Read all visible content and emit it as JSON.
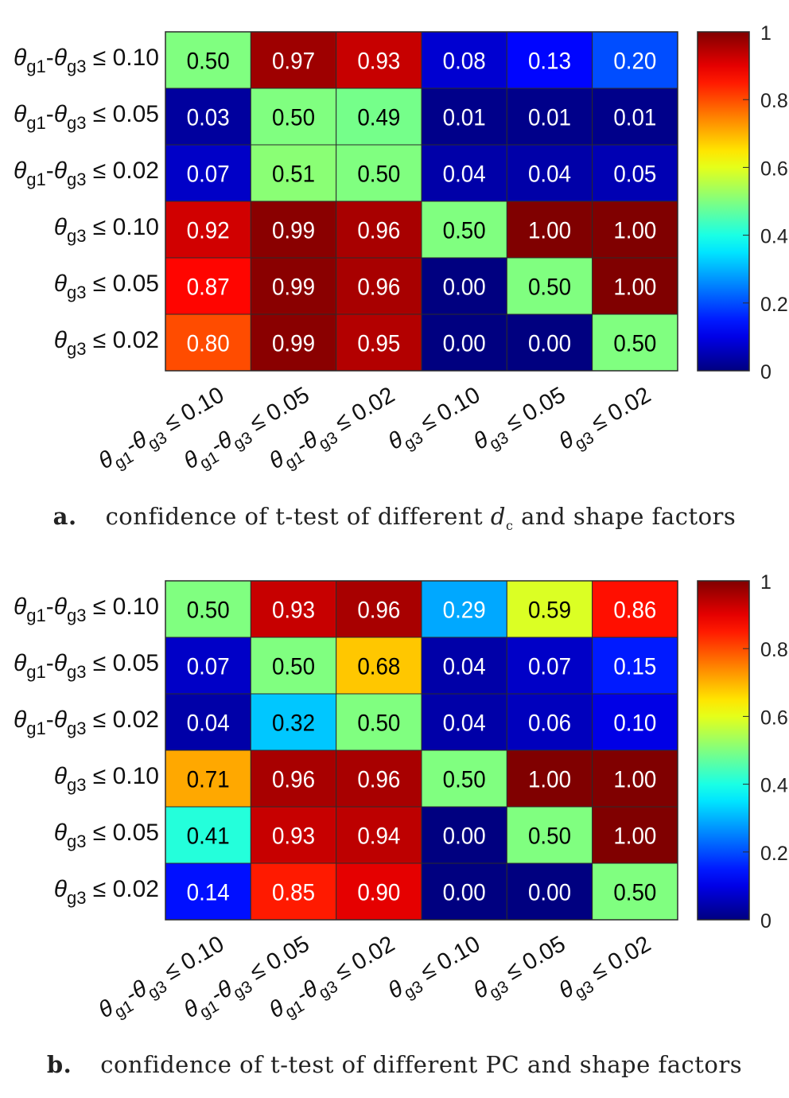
{
  "chart_data": [
    {
      "type": "heatmap",
      "row_labels": [
        {
          "theta": "θ",
          "sub1": "g1",
          "dash": "-",
          "theta2": "θ",
          "sub2": "g3",
          "cmp": "≤ 0.10"
        },
        {
          "theta": "θ",
          "sub1": "g1",
          "dash": "-",
          "theta2": "θ",
          "sub2": "g3",
          "cmp": "≤ 0.05"
        },
        {
          "theta": "θ",
          "sub1": "g1",
          "dash": "-",
          "theta2": "θ",
          "sub2": "g3",
          "cmp": "≤ 0.02"
        },
        {
          "theta": "",
          "sub1": "",
          "dash": "",
          "theta2": "θ",
          "sub2": "g3",
          "cmp": "≤ 0.10"
        },
        {
          "theta": "",
          "sub1": "",
          "dash": "",
          "theta2": "θ",
          "sub2": "g3",
          "cmp": "≤ 0.05"
        },
        {
          "theta": "",
          "sub1": "",
          "dash": "",
          "theta2": "θ",
          "sub2": "g3",
          "cmp": "≤ 0.02"
        }
      ],
      "col_labels": [
        {
          "theta": "θ",
          "sub1": "g1",
          "dash": "-",
          "theta2": "θ",
          "sub2": "g3",
          "cmp": "≤ 0.10"
        },
        {
          "theta": "θ",
          "sub1": "g1",
          "dash": "-",
          "theta2": "θ",
          "sub2": "g3",
          "cmp": "≤ 0.05"
        },
        {
          "theta": "θ",
          "sub1": "g1",
          "dash": "-",
          "theta2": "θ",
          "sub2": "g3",
          "cmp": "≤ 0.02"
        },
        {
          "theta": "",
          "sub1": "",
          "dash": "",
          "theta2": "θ",
          "sub2": "g3",
          "cmp": "≤ 0.10"
        },
        {
          "theta": "",
          "sub1": "",
          "dash": "",
          "theta2": "θ",
          "sub2": "g3",
          "cmp": "≤ 0.05"
        },
        {
          "theta": "",
          "sub1": "",
          "dash": "",
          "theta2": "θ",
          "sub2": "g3",
          "cmp": "≤ 0.02"
        }
      ],
      "values": [
        [
          0.5,
          0.97,
          0.93,
          0.08,
          0.13,
          0.2
        ],
        [
          0.03,
          0.5,
          0.49,
          0.01,
          0.01,
          0.01
        ],
        [
          0.07,
          0.51,
          0.5,
          0.04,
          0.04,
          0.05
        ],
        [
          0.92,
          0.99,
          0.96,
          0.5,
          1.0,
          1.0
        ],
        [
          0.87,
          0.99,
          0.96,
          0.0,
          0.5,
          1.0
        ],
        [
          0.8,
          0.99,
          0.95,
          0.0,
          0.0,
          0.5
        ]
      ],
      "value_labels": [
        [
          "0.50",
          "0.97",
          "0.93",
          "0.08",
          "0.13",
          "0.20"
        ],
        [
          "0.03",
          "0.50",
          "0.49",
          "0.01",
          "0.01",
          "0.01"
        ],
        [
          "0.07",
          "0.51",
          "0.50",
          "0.04",
          "0.04",
          "0.05"
        ],
        [
          "0.92",
          "0.99",
          "0.96",
          "0.50",
          "1.00",
          "1.00"
        ],
        [
          "0.87",
          "0.99",
          "0.96",
          "0.00",
          "0.50",
          "1.00"
        ],
        [
          "0.80",
          "0.99",
          "0.95",
          "0.00",
          "0.00",
          "0.50"
        ]
      ],
      "colorbar": {
        "range": [
          0,
          1
        ],
        "ticks": [
          "0",
          "0.2",
          "0.4",
          "0.6",
          "0.8",
          "1"
        ],
        "colormap": "jet"
      }
    },
    {
      "type": "heatmap",
      "row_labels": [
        {
          "theta": "θ",
          "sub1": "g1",
          "dash": "-",
          "theta2": "θ",
          "sub2": "g3",
          "cmp": "≤ 0.10"
        },
        {
          "theta": "θ",
          "sub1": "g1",
          "dash": "-",
          "theta2": "θ",
          "sub2": "g3",
          "cmp": "≤ 0.05"
        },
        {
          "theta": "θ",
          "sub1": "g1",
          "dash": "-",
          "theta2": "θ",
          "sub2": "g3",
          "cmp": "≤ 0.02"
        },
        {
          "theta": "",
          "sub1": "",
          "dash": "",
          "theta2": "θ",
          "sub2": "g3",
          "cmp": "≤ 0.10"
        },
        {
          "theta": "",
          "sub1": "",
          "dash": "",
          "theta2": "θ",
          "sub2": "g3",
          "cmp": "≤ 0.05"
        },
        {
          "theta": "",
          "sub1": "",
          "dash": "",
          "theta2": "θ",
          "sub2": "g3",
          "cmp": "≤ 0.02"
        }
      ],
      "col_labels": [
        {
          "theta": "θ",
          "sub1": "g1",
          "dash": "-",
          "theta2": "θ",
          "sub2": "g3",
          "cmp": "≤ 0.10"
        },
        {
          "theta": "θ",
          "sub1": "g1",
          "dash": "-",
          "theta2": "θ",
          "sub2": "g3",
          "cmp": "≤ 0.05"
        },
        {
          "theta": "θ",
          "sub1": "g1",
          "dash": "-",
          "theta2": "θ",
          "sub2": "g3",
          "cmp": "≤ 0.02"
        },
        {
          "theta": "",
          "sub1": "",
          "dash": "",
          "theta2": "θ",
          "sub2": "g3",
          "cmp": "≤ 0.10"
        },
        {
          "theta": "",
          "sub1": "",
          "dash": "",
          "theta2": "θ",
          "sub2": "g3",
          "cmp": "≤ 0.05"
        },
        {
          "theta": "",
          "sub1": "",
          "dash": "",
          "theta2": "θ",
          "sub2": "g3",
          "cmp": "≤ 0.02"
        }
      ],
      "values": [
        [
          0.5,
          0.93,
          0.96,
          0.29,
          0.59,
          0.86
        ],
        [
          0.07,
          0.5,
          0.68,
          0.04,
          0.07,
          0.15
        ],
        [
          0.04,
          0.32,
          0.5,
          0.04,
          0.06,
          0.1
        ],
        [
          0.71,
          0.96,
          0.96,
          0.5,
          1.0,
          1.0
        ],
        [
          0.41,
          0.93,
          0.94,
          0.0,
          0.5,
          1.0
        ],
        [
          0.14,
          0.85,
          0.9,
          0.0,
          0.0,
          0.5
        ]
      ],
      "value_labels": [
        [
          "0.50",
          "0.93",
          "0.96",
          "0.29",
          "0.59",
          "0.86"
        ],
        [
          "0.07",
          "0.50",
          "0.68",
          "0.04",
          "0.07",
          "0.15"
        ],
        [
          "0.04",
          "0.32",
          "0.50",
          "0.04",
          "0.06",
          "0.10"
        ],
        [
          "0.71",
          "0.96",
          "0.96",
          "0.50",
          "1.00",
          "1.00"
        ],
        [
          "0.41",
          "0.93",
          "0.94",
          "0.00",
          "0.50",
          "1.00"
        ],
        [
          "0.14",
          "0.85",
          "0.90",
          "0.00",
          "0.00",
          "0.50"
        ]
      ],
      "colorbar": {
        "range": [
          0,
          1
        ],
        "ticks": [
          "0",
          "0.2",
          "0.4",
          "0.6",
          "0.8",
          "1"
        ],
        "colormap": "jet"
      }
    }
  ],
  "captions": {
    "a": {
      "label": "a.",
      "text_before": "confidence of t-test of different ",
      "var": "d",
      "var_sub": "c",
      "text_after": " and shape factors"
    },
    "b": {
      "label": "b.",
      "text": "confidence of t-test of different PC and shape factors"
    }
  }
}
